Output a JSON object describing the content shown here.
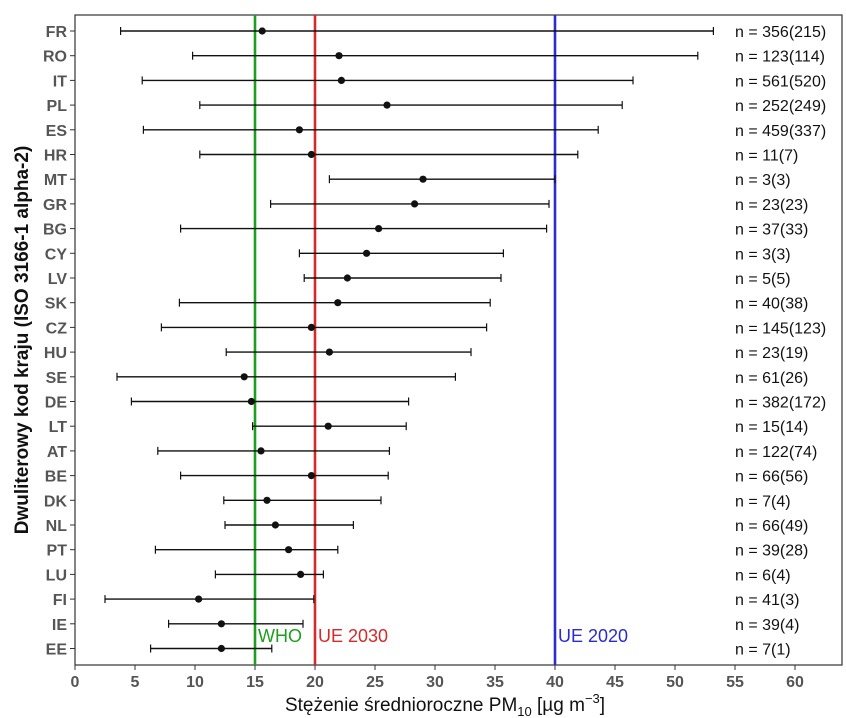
{
  "chart_data": {
    "type": "errorbar",
    "xlabel_main": "Stężenie średnioroczne PM",
    "xlabel_sub": "10",
    "xlabel_unit_pre": " [µg m",
    "xlabel_sup": "−3",
    "xlabel_unit_post": "]",
    "ylabel": "Dwuliterowy kod kraju (ISO 3166-1 alpha-2)",
    "xlim": [
      0,
      64
    ],
    "xticks": [
      "0",
      "5",
      "10",
      "15",
      "20",
      "25",
      "30",
      "35",
      "40",
      "45",
      "50",
      "55",
      "60"
    ],
    "grid": false,
    "colors": {
      "who": "#1e9e1e",
      "ue2030": "#d42a2a",
      "ue2020": "#2b2bd1",
      "points": "#111111"
    },
    "reference_lines": [
      {
        "label": "WHO",
        "value": 15,
        "color": "#1e9e1e"
      },
      {
        "label": "UE 2030",
        "value": 20,
        "color": "#d42a2a"
      },
      {
        "label": "UE 2020",
        "value": 40,
        "color": "#2b2bd1"
      }
    ],
    "categories": [
      "FR",
      "RO",
      "IT",
      "PL",
      "ES",
      "HR",
      "MT",
      "GR",
      "BG",
      "CY",
      "LV",
      "SK",
      "CZ",
      "HU",
      "SE",
      "DE",
      "LT",
      "AT",
      "BE",
      "DK",
      "NL",
      "PT",
      "LU",
      "FI",
      "IE",
      "EE"
    ],
    "mean": [
      15.6,
      22.0,
      22.2,
      26.0,
      18.7,
      19.7,
      29.0,
      28.3,
      25.3,
      24.3,
      22.7,
      21.9,
      19.7,
      21.2,
      14.1,
      14.7,
      21.1,
      15.5,
      19.7,
      16.0,
      16.7,
      17.8,
      18.8,
      10.3,
      12.2,
      12.2
    ],
    "min": [
      3.8,
      9.8,
      5.6,
      10.4,
      5.7,
      10.4,
      21.2,
      16.3,
      8.8,
      18.7,
      19.1,
      8.7,
      7.2,
      12.6,
      3.5,
      4.7,
      14.8,
      6.9,
      8.8,
      12.4,
      12.5,
      6.7,
      11.7,
      2.5,
      7.8,
      6.3
    ],
    "max": [
      53.2,
      51.9,
      46.5,
      45.6,
      43.6,
      41.9,
      40.0,
      39.5,
      39.3,
      35.7,
      35.5,
      34.6,
      34.3,
      33.0,
      31.7,
      27.8,
      27.6,
      26.2,
      26.1,
      25.5,
      23.2,
      21.9,
      20.7,
      19.9,
      19.0,
      16.4
    ],
    "n_labels": [
      "n = 356(215)",
      "n = 123(114)",
      "n = 561(520)",
      "n = 252(249)",
      "n = 459(337)",
      "n = 11(7)",
      "n = 3(3)",
      "n = 23(23)",
      "n = 37(33)",
      "n = 3(3)",
      "n = 5(5)",
      "n = 40(38)",
      "n = 145(123)",
      "n = 23(19)",
      "n = 61(26)",
      "n = 382(172)",
      "n = 15(14)",
      "n = 122(74)",
      "n = 66(56)",
      "n = 7(4)",
      "n = 66(49)",
      "n = 39(28)",
      "n = 6(4)",
      "n = 41(3)",
      "n = 39(4)",
      "n = 7(1)"
    ]
  }
}
